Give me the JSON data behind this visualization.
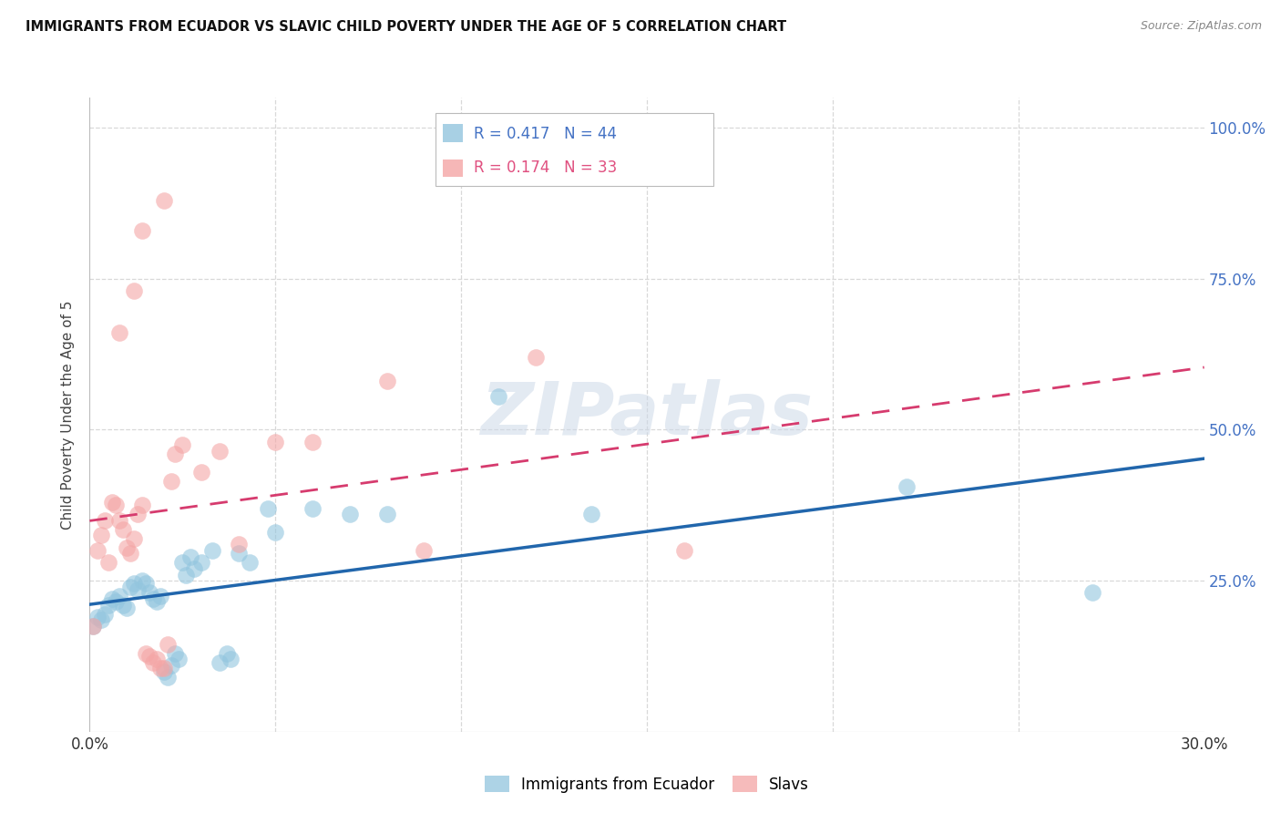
{
  "title": "IMMIGRANTS FROM ECUADOR VS SLAVIC CHILD POVERTY UNDER THE AGE OF 5 CORRELATION CHART",
  "source": "Source: ZipAtlas.com",
  "ylabel": "Child Poverty Under the Age of 5",
  "x_min": 0.0,
  "x_max": 0.3,
  "y_min": 0.0,
  "y_max": 1.05,
  "legend_r1": "0.417",
  "legend_n1": "44",
  "legend_r2": "0.174",
  "legend_n2": "33",
  "legend_label1": "Immigrants from Ecuador",
  "legend_label2": "Slavs",
  "color_blue": "#92c5de",
  "color_pink": "#f4a5a5",
  "color_line_blue": "#2166ac",
  "color_line_pink": "#d63b6e",
  "color_r_blue": "#4472c4",
  "color_r_pink": "#e05080",
  "watermark": "ZIPatlas",
  "ecuador_points": [
    [
      0.001,
      0.175
    ],
    [
      0.002,
      0.19
    ],
    [
      0.003,
      0.185
    ],
    [
      0.004,
      0.195
    ],
    [
      0.005,
      0.21
    ],
    [
      0.006,
      0.22
    ],
    [
      0.007,
      0.215
    ],
    [
      0.008,
      0.225
    ],
    [
      0.009,
      0.21
    ],
    [
      0.01,
      0.205
    ],
    [
      0.011,
      0.24
    ],
    [
      0.012,
      0.245
    ],
    [
      0.013,
      0.235
    ],
    [
      0.014,
      0.25
    ],
    [
      0.015,
      0.245
    ],
    [
      0.016,
      0.23
    ],
    [
      0.017,
      0.22
    ],
    [
      0.018,
      0.215
    ],
    [
      0.019,
      0.225
    ],
    [
      0.02,
      0.1
    ],
    [
      0.021,
      0.09
    ],
    [
      0.022,
      0.11
    ],
    [
      0.023,
      0.13
    ],
    [
      0.024,
      0.12
    ],
    [
      0.025,
      0.28
    ],
    [
      0.026,
      0.26
    ],
    [
      0.027,
      0.29
    ],
    [
      0.028,
      0.27
    ],
    [
      0.03,
      0.28
    ],
    [
      0.033,
      0.3
    ],
    [
      0.035,
      0.115
    ],
    [
      0.037,
      0.13
    ],
    [
      0.038,
      0.12
    ],
    [
      0.04,
      0.295
    ],
    [
      0.043,
      0.28
    ],
    [
      0.048,
      0.37
    ],
    [
      0.05,
      0.33
    ],
    [
      0.06,
      0.37
    ],
    [
      0.07,
      0.36
    ],
    [
      0.08,
      0.36
    ],
    [
      0.11,
      0.555
    ],
    [
      0.135,
      0.36
    ],
    [
      0.22,
      0.405
    ],
    [
      0.27,
      0.23
    ]
  ],
  "slavic_points": [
    [
      0.001,
      0.175
    ],
    [
      0.002,
      0.3
    ],
    [
      0.003,
      0.325
    ],
    [
      0.004,
      0.35
    ],
    [
      0.005,
      0.28
    ],
    [
      0.006,
      0.38
    ],
    [
      0.007,
      0.375
    ],
    [
      0.008,
      0.35
    ],
    [
      0.009,
      0.335
    ],
    [
      0.01,
      0.305
    ],
    [
      0.011,
      0.295
    ],
    [
      0.012,
      0.32
    ],
    [
      0.013,
      0.36
    ],
    [
      0.014,
      0.375
    ],
    [
      0.015,
      0.13
    ],
    [
      0.016,
      0.125
    ],
    [
      0.017,
      0.115
    ],
    [
      0.018,
      0.12
    ],
    [
      0.019,
      0.105
    ],
    [
      0.02,
      0.105
    ],
    [
      0.021,
      0.145
    ],
    [
      0.022,
      0.415
    ],
    [
      0.023,
      0.46
    ],
    [
      0.025,
      0.475
    ],
    [
      0.03,
      0.43
    ],
    [
      0.035,
      0.465
    ],
    [
      0.04,
      0.31
    ],
    [
      0.05,
      0.48
    ],
    [
      0.06,
      0.48
    ],
    [
      0.08,
      0.58
    ],
    [
      0.09,
      0.3
    ],
    [
      0.12,
      0.62
    ],
    [
      0.16,
      0.3
    ]
  ],
  "slavic_outliers": [
    [
      0.014,
      0.83
    ],
    [
      0.02,
      0.88
    ],
    [
      0.008,
      0.66
    ],
    [
      0.012,
      0.73
    ]
  ]
}
